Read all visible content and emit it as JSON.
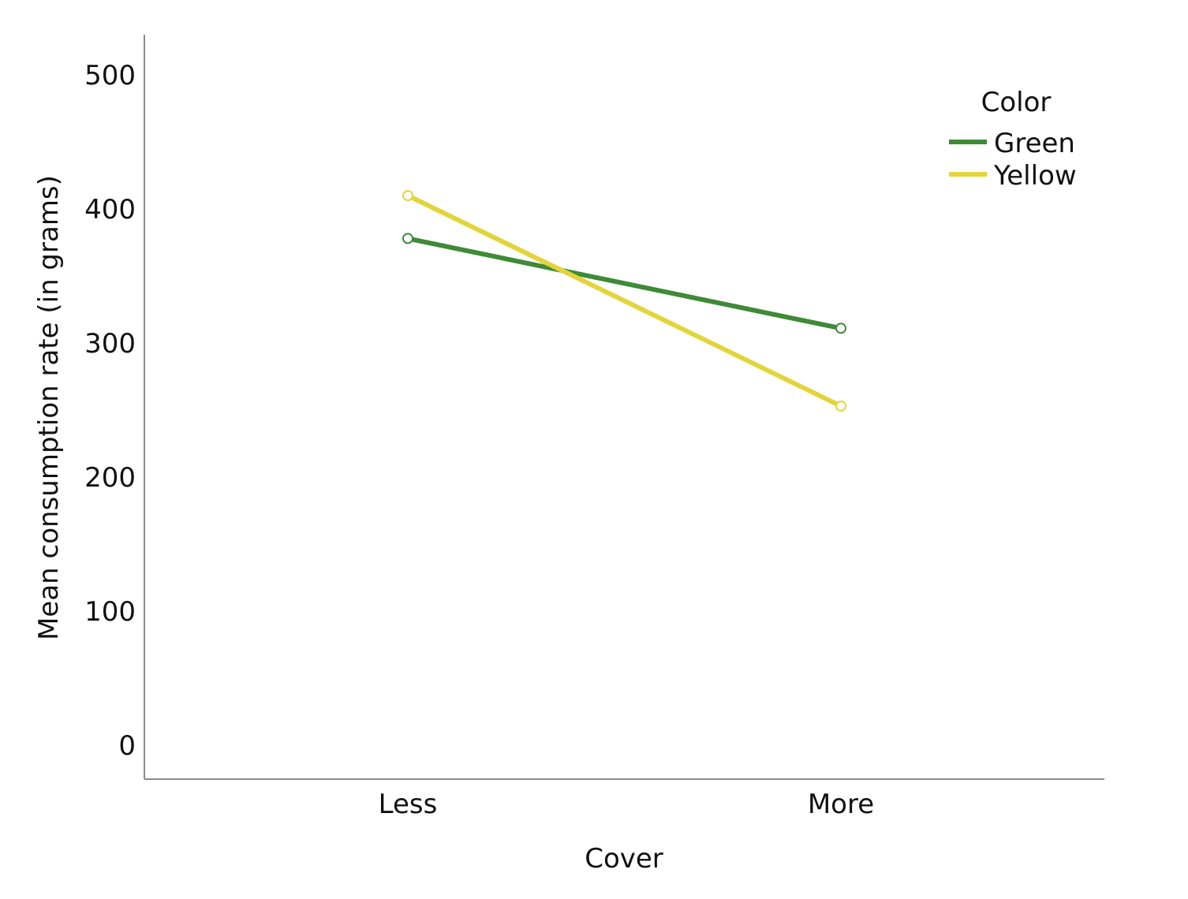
{
  "chart_data": {
    "type": "line",
    "categories": [
      "Less",
      "More"
    ],
    "series": [
      {
        "name": "Green",
        "values": [
          378,
          311
        ],
        "color": "#3f8a36"
      },
      {
        "name": "Yellow",
        "values": [
          410,
          253
        ],
        "color": "#e2d43b"
      }
    ],
    "xlabel": "Cover",
    "ylabel": "Mean consumption rate (in grams)",
    "ylim": [
      -25,
      525
    ],
    "yticks": [
      0,
      100,
      200,
      300,
      400,
      500
    ],
    "grid": false,
    "legend": {
      "title": "Color",
      "position": "top-right"
    },
    "markers": "open-circle"
  }
}
